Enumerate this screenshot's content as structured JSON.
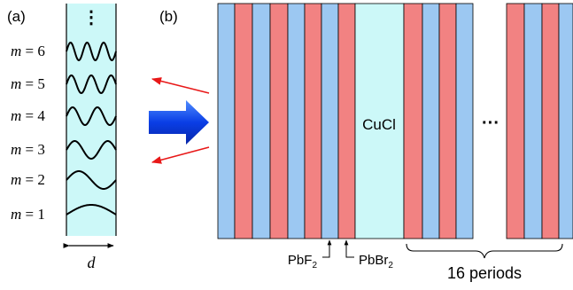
{
  "panel_a": {
    "label": "(a)",
    "ellipsis": "⋮",
    "modes": [
      {
        "label": "m = 1",
        "m": 1
      },
      {
        "label": "m = 2",
        "m": 2
      },
      {
        "label": "m = 3",
        "m": 3
      },
      {
        "label": "m = 4",
        "m": 4
      },
      {
        "label": "m = 5",
        "m": 5
      },
      {
        "label": "m = 6",
        "m": 6
      }
    ],
    "width_label": "d"
  },
  "panel_b": {
    "label": "(b)",
    "cavity_label": "CuCl",
    "ellipsis": "···",
    "layer1_label": "PbF",
    "layer1_sub": "2",
    "layer2_label": "PbBr",
    "layer2_sub": "2",
    "periods_label": "16 periods"
  },
  "colors": {
    "cavity": "#ccf8f8",
    "layer_blue": "#9cc8f2",
    "layer_red": "#f28282",
    "arrow_blue": "#0a3ee6",
    "arrow_red": "#e81818"
  }
}
